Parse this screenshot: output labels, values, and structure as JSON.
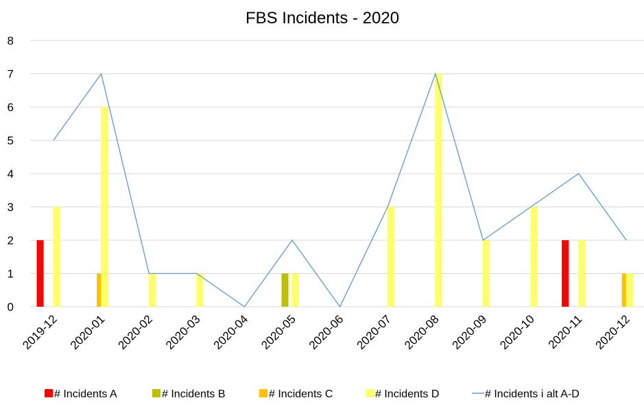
{
  "chart_data": {
    "type": "bar",
    "title": "FBS Incidents - 2020",
    "xlabel": "",
    "ylabel": "",
    "ylim": [
      0,
      8
    ],
    "yticks": [
      0,
      1,
      2,
      3,
      4,
      5,
      6,
      7,
      8
    ],
    "grid": "horizontal",
    "legend_position": "bottom",
    "categories": [
      "2019-12",
      "2020-01",
      "2020-02",
      "2020-03",
      "2020-04",
      "2020-05",
      "2020-06",
      "2020-07",
      "2020-08",
      "2020-09",
      "2020-10",
      "2020-11",
      "2020-12"
    ],
    "series": [
      {
        "name": "# Incidents A",
        "type": "bar",
        "color": "#ff0000",
        "values": [
          2,
          0,
          0,
          0,
          0,
          0,
          0,
          0,
          0,
          0,
          0,
          2,
          0
        ]
      },
      {
        "name": "# Incidents B",
        "type": "bar",
        "color": "#bfbf00",
        "values": [
          0,
          0,
          0,
          0,
          0,
          1,
          0,
          0,
          0,
          0,
          0,
          0,
          0
        ]
      },
      {
        "name": "# Incidents C",
        "type": "bar",
        "color": "#ffc000",
        "values": [
          0,
          1,
          0,
          0,
          0,
          0,
          0,
          0,
          0,
          0,
          0,
          0,
          1
        ]
      },
      {
        "name": "# Incidents D",
        "type": "bar",
        "color": "#ffff66",
        "values": [
          3,
          6,
          1,
          1,
          0,
          1,
          0,
          3,
          7,
          2,
          3,
          2,
          1
        ]
      },
      {
        "name": "# Incidents i alt A-D",
        "type": "line",
        "color": "#5b9bd5",
        "values": [
          5,
          7,
          1,
          1,
          0,
          2,
          0,
          3,
          7,
          2,
          3,
          4,
          2
        ]
      }
    ]
  }
}
